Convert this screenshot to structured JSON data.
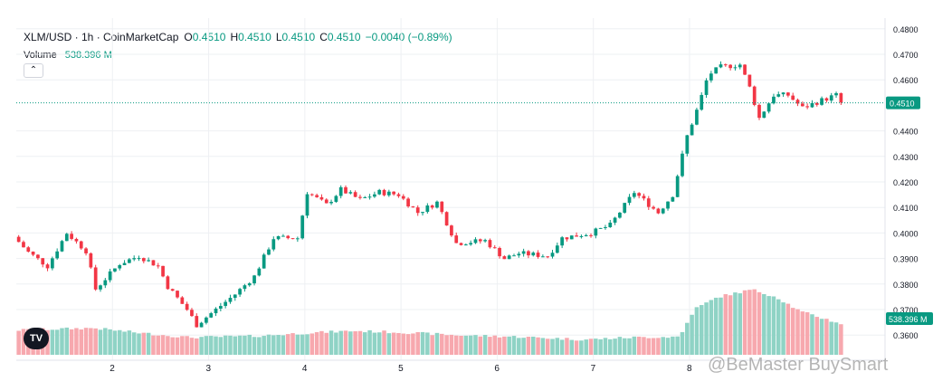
{
  "header": {
    "symbol": "XLM/USD · 1h · CoinMarketCap",
    "open_label": "O",
    "open": "0.4510",
    "high_label": "H",
    "high": "0.4510",
    "low_label": "L",
    "low": "0.4510",
    "close_label": "C",
    "close": "0.4510",
    "change": "−0.0040 (−0.89%)"
  },
  "volume": {
    "label": "Volume",
    "value": "538.396 M"
  },
  "watermark": "@BeMaster BuySmart",
  "logo_text": "TV",
  "colors": {
    "up": "#089981",
    "down": "#f23645",
    "vol_up": "#8fd3c5",
    "vol_down": "#f7a8ae",
    "grid": "#eef0f3"
  },
  "chart_data": {
    "type": "candlestick",
    "title": "XLM/USD · 1h · CoinMarketCap",
    "x_ticks": [
      "2",
      "3",
      "4",
      "5",
      "6",
      "7",
      "8"
    ],
    "x_tick_positions": [
      1,
      2,
      3,
      4,
      5,
      6,
      7
    ],
    "y_ticks": [
      "0.4800",
      "0.4700",
      "0.4600",
      "0.4510",
      "0.4400",
      "0.4300",
      "0.4200",
      "0.4100",
      "0.4000",
      "0.3900",
      "0.3800",
      "0.3700",
      "0.3600"
    ],
    "ylim": [
      0.355,
      0.48
    ],
    "last_price": "0.4510",
    "last_price_value": 0.451,
    "volume_last": "538.396 M",
    "grid": true,
    "price_path": [
      [
        0.0,
        0.3985
      ],
      [
        0.15,
        0.3925
      ],
      [
        0.35,
        0.387
      ],
      [
        0.55,
        0.4
      ],
      [
        0.75,
        0.393
      ],
      [
        0.85,
        0.378
      ],
      [
        1.1,
        0.388
      ],
      [
        1.3,
        0.391
      ],
      [
        1.5,
        0.387
      ],
      [
        1.6,
        0.379
      ],
      [
        1.8,
        0.37
      ],
      [
        1.9,
        0.364
      ],
      [
        2.1,
        0.37
      ],
      [
        2.3,
        0.376
      ],
      [
        2.5,
        0.383
      ],
      [
        2.7,
        0.398
      ],
      [
        2.95,
        0.398
      ],
      [
        3.05,
        0.416
      ],
      [
        3.25,
        0.411
      ],
      [
        3.4,
        0.417
      ],
      [
        3.6,
        0.413
      ],
      [
        3.8,
        0.416
      ],
      [
        4.0,
        0.415
      ],
      [
        4.2,
        0.408
      ],
      [
        4.4,
        0.412
      ],
      [
        4.6,
        0.396
      ],
      [
        4.9,
        0.397
      ],
      [
        5.1,
        0.39
      ],
      [
        5.25,
        0.392
      ],
      [
        5.55,
        0.391
      ],
      [
        5.7,
        0.398
      ],
      [
        6.0,
        0.4
      ],
      [
        6.2,
        0.403
      ],
      [
        6.45,
        0.416
      ],
      [
        6.7,
        0.408
      ],
      [
        6.85,
        0.415
      ],
      [
        7.0,
        0.438
      ],
      [
        7.12,
        0.45
      ],
      [
        7.22,
        0.462
      ],
      [
        7.35,
        0.465
      ],
      [
        7.55,
        0.466
      ],
      [
        7.65,
        0.457
      ],
      [
        7.75,
        0.445
      ],
      [
        7.9,
        0.454
      ],
      [
        8.05,
        0.454
      ],
      [
        8.2,
        0.449
      ],
      [
        8.4,
        0.452
      ],
      [
        8.55,
        0.454
      ],
      [
        8.6,
        0.451
      ]
    ],
    "volume_path": [
      [
        0.0,
        0.34
      ],
      [
        0.8,
        0.37
      ],
      [
        1.3,
        0.3
      ],
      [
        1.8,
        0.24
      ],
      [
        2.5,
        0.26
      ],
      [
        3.0,
        0.3
      ],
      [
        3.5,
        0.33
      ],
      [
        4.0,
        0.31
      ],
      [
        4.6,
        0.27
      ],
      [
        5.2,
        0.25
      ],
      [
        5.9,
        0.21
      ],
      [
        6.4,
        0.24
      ],
      [
        6.9,
        0.25
      ],
      [
        7.05,
        0.63
      ],
      [
        7.3,
        0.8
      ],
      [
        7.65,
        0.9
      ],
      [
        7.9,
        0.8
      ],
      [
        8.15,
        0.6
      ],
      [
        8.6,
        0.42
      ]
    ]
  }
}
